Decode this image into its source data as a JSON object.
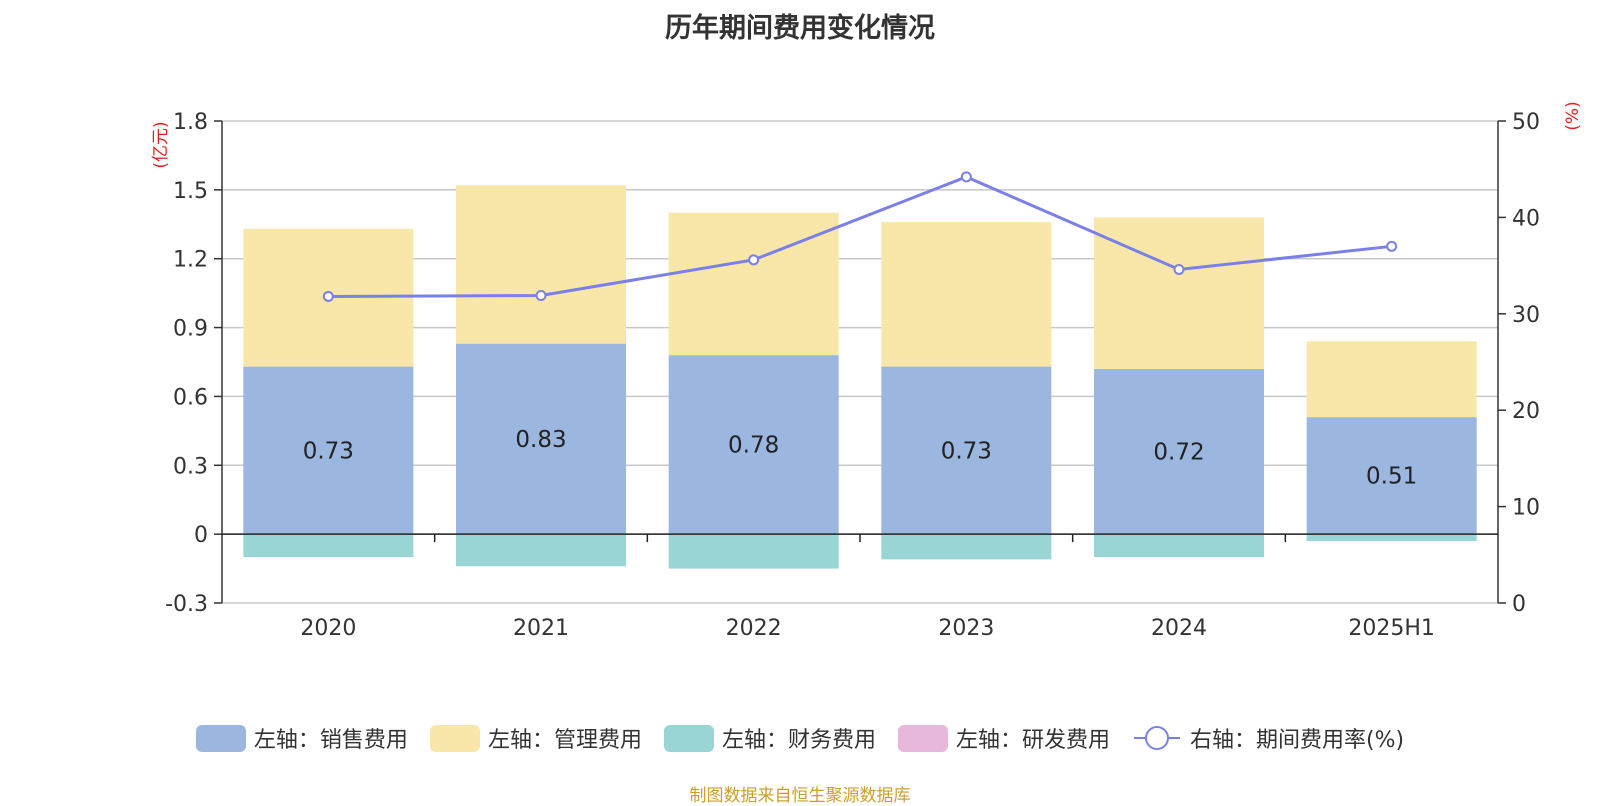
{
  "chart_data": {
    "type": "bar",
    "title": "历年期间费用变化情况",
    "categories": [
      "2020",
      "2021",
      "2022",
      "2023",
      "2024",
      "2025H1"
    ],
    "series": [
      {
        "name": "左轴：销售费用",
        "axis": "left",
        "stack": "a",
        "color": "#9bb7e0",
        "values": [
          0.73,
          0.83,
          0.78,
          0.73,
          0.72,
          0.51
        ]
      },
      {
        "name": "左轴：管理费用",
        "axis": "left",
        "stack": "a",
        "color": "#f8e7a8",
        "values": [
          0.6,
          0.69,
          0.62,
          0.63,
          0.66,
          0.33
        ]
      },
      {
        "name": "左轴：财务费用",
        "axis": "left",
        "stack": "a",
        "color": "#99d5d4",
        "values": [
          -0.1,
          -0.14,
          -0.15,
          -0.11,
          -0.1,
          -0.03
        ]
      },
      {
        "name": "左轴：研发费用",
        "axis": "left",
        "stack": "a",
        "color": "#e8b8db",
        "values": [
          0,
          0,
          0,
          0,
          0,
          0
        ]
      },
      {
        "name": "右轴：期间费用率(%)",
        "type": "line",
        "axis": "right",
        "color": "#7b7fe8",
        "values": [
          31.8,
          31.9,
          35.6,
          44.2,
          34.6,
          37.0
        ]
      }
    ],
    "data_labels": [
      "0.73",
      "0.83",
      "0.78",
      "0.73",
      "0.72",
      "0.51"
    ],
    "y_left": {
      "unit": "(亿元)",
      "ylim": [
        -0.3,
        1.8
      ],
      "ticks": [
        "-0.3",
        "0",
        "0.3",
        "0.6",
        "0.9",
        "1.2",
        "1.5",
        "1.8"
      ]
    },
    "y_right": {
      "unit": "(%)",
      "ylim": [
        0,
        50
      ],
      "ticks": [
        "0",
        "10",
        "20",
        "30",
        "40",
        "50"
      ]
    },
    "grid": true,
    "legend_position": "bottom"
  },
  "source_note": "制图数据来自恒生聚源数据库"
}
